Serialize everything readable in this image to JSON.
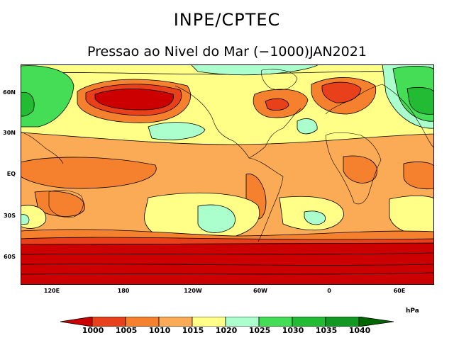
{
  "header": {
    "org": "INPE/CPTEC",
    "title": "Pressao ao Nivel do Mar (−1000)JAN2021"
  },
  "map": {
    "lat_labels": [
      "60N",
      "30N",
      "EQ",
      "30S",
      "60S"
    ],
    "lon_labels": [
      "120E",
      "180",
      "120W",
      "60W",
      "0",
      "60E"
    ]
  },
  "legend": {
    "units": "hPa",
    "levels": [
      "1000",
      "1005",
      "1010",
      "1015",
      "1020",
      "1025",
      "1030",
      "1035",
      "1040"
    ],
    "colors": [
      "#cc0000",
      "#e8401a",
      "#f5802e",
      "#fbaa55",
      "#ffff88",
      "#aaffcc",
      "#44dd55",
      "#22bb33",
      "#119922",
      "#006600"
    ]
  }
}
